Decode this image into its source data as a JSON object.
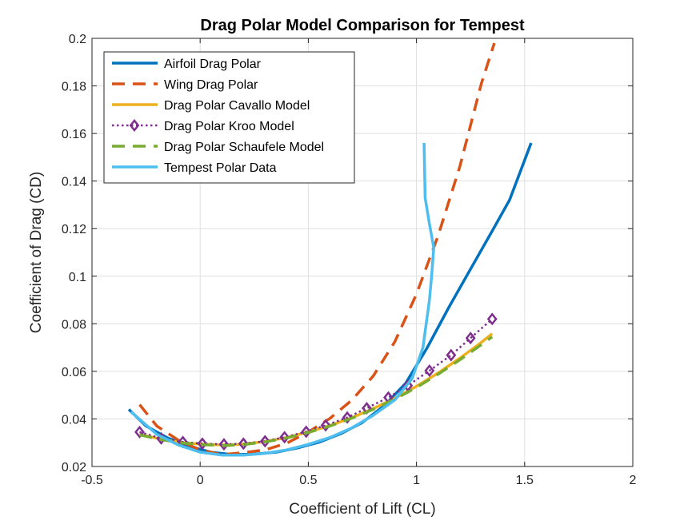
{
  "chart_data": {
    "type": "line",
    "title": "Drag Polar Model Comparison for Tempest",
    "xlabel": "Coefficient of Lift (CL)",
    "ylabel": "Coefficient of Drag (CD)",
    "xlim": [
      -0.5,
      2
    ],
    "ylim": [
      0.02,
      0.2
    ],
    "xticks": [
      -0.5,
      0,
      0.5,
      1,
      1.5,
      2
    ],
    "xtick_labels": [
      "-0.5",
      "0",
      "0.5",
      "1",
      "1.5",
      "2"
    ],
    "yticks": [
      0.02,
      0.04,
      0.06,
      0.08,
      0.1,
      0.12,
      0.14,
      0.16,
      0.18,
      0.2
    ],
    "ytick_labels": [
      "0.02",
      "0.04",
      "0.06",
      "0.08",
      "0.1",
      "0.12",
      "0.14",
      "0.16",
      "0.18",
      "0.2"
    ],
    "grid": true,
    "legend_position": "top-left",
    "series": [
      {
        "name": "Airfoil Drag Polar",
        "color": "#0072BD",
        "style": "solid",
        "marker": "none",
        "x": [
          -0.33,
          -0.25,
          -0.15,
          -0.05,
          0.05,
          0.15,
          0.25,
          0.35,
          0.45,
          0.55,
          0.65,
          0.75,
          0.85,
          0.95,
          1.05,
          1.15,
          1.25,
          1.35,
          1.43,
          1.53
        ],
        "y": [
          0.044,
          0.037,
          0.032,
          0.0285,
          0.026,
          0.025,
          0.0252,
          0.026,
          0.0278,
          0.0302,
          0.0338,
          0.0385,
          0.0455,
          0.055,
          0.07,
          0.087,
          0.103,
          0.119,
          0.132,
          0.156
        ]
      },
      {
        "name": "Wing Drag Polar",
        "color": "#D95319",
        "style": "dashed",
        "marker": "none",
        "x": [
          -0.28,
          -0.2,
          -0.1,
          0,
          0.1,
          0.2,
          0.3,
          0.4,
          0.5,
          0.6,
          0.7,
          0.8,
          0.9,
          1.0,
          1.1,
          1.2,
          1.3,
          1.36
        ],
        "y": [
          0.046,
          0.037,
          0.031,
          0.027,
          0.025,
          0.0258,
          0.027,
          0.0298,
          0.0345,
          0.0402,
          0.0478,
          0.058,
          0.0725,
          0.0925,
          0.117,
          0.146,
          0.181,
          0.198
        ]
      },
      {
        "name": "Drag Polar Cavallo Model",
        "color": "#EDB120",
        "style": "solid",
        "marker": "none",
        "x": [
          -0.28,
          -0.18,
          -0.08,
          0.02,
          0.12,
          0.2,
          0.3,
          0.4,
          0.5,
          0.6,
          0.7,
          0.8,
          0.9,
          1.0,
          1.1,
          1.2,
          1.3,
          1.35
        ],
        "y": [
          0.0335,
          0.0315,
          0.03,
          0.0293,
          0.029,
          0.0294,
          0.0305,
          0.0322,
          0.0345,
          0.0372,
          0.0405,
          0.0443,
          0.0487,
          0.0537,
          0.0593,
          0.0655,
          0.0722,
          0.0758
        ]
      },
      {
        "name": "Drag Polar Kroo Model",
        "color": "#7E2F8E",
        "style": "dotted",
        "marker": "diamond",
        "x": [
          -0.28,
          -0.18,
          -0.08,
          0.01,
          0.11,
          0.2,
          0.3,
          0.39,
          0.49,
          0.58,
          0.68,
          0.77,
          0.87,
          0.96,
          1.06,
          1.16,
          1.25,
          1.35
        ],
        "y": [
          0.0345,
          0.0318,
          0.0303,
          0.0296,
          0.0293,
          0.0296,
          0.0306,
          0.0323,
          0.0346,
          0.0373,
          0.0406,
          0.0445,
          0.049,
          0.054,
          0.0603,
          0.0668,
          0.074,
          0.082
        ]
      },
      {
        "name": "Drag Polar Schaufele Model",
        "color": "#77AC30",
        "style": "dashed",
        "marker": "none",
        "x": [
          -0.28,
          -0.18,
          -0.08,
          0.02,
          0.12,
          0.2,
          0.3,
          0.4,
          0.5,
          0.6,
          0.7,
          0.8,
          0.9,
          1.0,
          1.1,
          1.2,
          1.3,
          1.35
        ],
        "y": [
          0.0333,
          0.0313,
          0.0298,
          0.0291,
          0.0288,
          0.0292,
          0.0303,
          0.032,
          0.0343,
          0.037,
          0.0403,
          0.044,
          0.0483,
          0.0532,
          0.0588,
          0.0648,
          0.0712,
          0.0745
        ]
      },
      {
        "name": "Tempest Polar Data",
        "color": "#4DBEEE",
        "style": "solid",
        "marker": "none",
        "x": [
          -0.32,
          -0.2,
          -0.1,
          0,
          0.1,
          0.2,
          0.3,
          0.4,
          0.5,
          0.6,
          0.7,
          0.8,
          0.9,
          0.98,
          1.03,
          1.06,
          1.07,
          1.08,
          1.06,
          1.04,
          1.035
        ],
        "y": [
          0.043,
          0.0335,
          0.029,
          0.026,
          0.0248,
          0.0248,
          0.0255,
          0.027,
          0.0293,
          0.0322,
          0.0362,
          0.0415,
          0.048,
          0.057,
          0.07,
          0.09,
          0.1,
          0.112,
          0.122,
          0.133,
          0.156
        ]
      }
    ]
  }
}
